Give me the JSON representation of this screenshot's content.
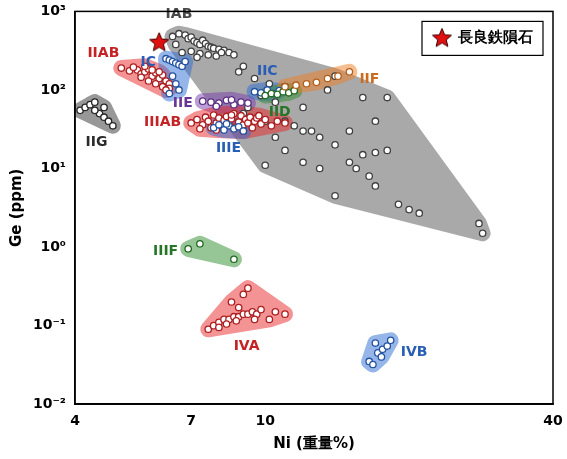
{
  "chart_data": {
    "type": "scatter",
    "x_label": "Ni (重量%)",
    "y_label": "Ge (ppm)",
    "log": true,
    "grid": false,
    "legend": "top-right",
    "xlim": [
      4,
      40
    ],
    "ylim": [
      0.01,
      1000
    ],
    "xticks": [
      4,
      7,
      10,
      40
    ],
    "yticks": [
      {
        "value": 0.01,
        "label": "10⁻²"
      },
      {
        "value": 0.1,
        "label": "10⁻¹"
      },
      {
        "value": 1,
        "label": "10⁰"
      },
      {
        "value": 10,
        "label": "10¹"
      },
      {
        "value": 100,
        "label": "10²"
      },
      {
        "value": 1000,
        "label": "10³"
      }
    ],
    "series": [
      {
        "name": "IAB",
        "color": "#555555",
        "marker": "circle",
        "x": [
          6.4,
          6.6,
          6.8,
          6.9,
          7.0,
          7.1,
          7.2,
          7.3,
          7.4,
          7.5,
          7.6,
          7.7,
          7.8,
          8.0,
          8.2,
          8.4,
          8.6,
          6.7,
          7.0,
          7.3,
          7.6,
          7.9,
          8.1,
          6.5,
          7.2,
          9.0,
          8.8,
          9.5,
          10.2,
          11.0,
          9.8,
          10.5,
          12.0,
          9.2,
          10.0,
          11.5,
          12.5,
          13.0,
          14.0,
          10.0,
          11.0,
          12.0,
          13.0,
          15.0,
          16.0,
          17.0,
          18.0,
          15.5,
          16.5,
          17.0,
          14.0,
          19.0,
          20.0,
          21.0,
          28.0,
          28.5,
          17.0,
          16.0,
          18.0,
          15.0,
          13.5,
          14.0,
          12.0,
          11.0,
          10.5,
          9.0
        ],
        "values": [
          480,
          520,
          500,
          450,
          470,
          420,
          400,
          380,
          430,
          390,
          360,
          350,
          340,
          330,
          320,
          300,
          280,
          300,
          310,
          290,
          280,
          270,
          300,
          380,
          260,
          200,
          170,
          140,
          120,
          110,
          85,
          70,
          60,
          60,
          40,
          35,
          30,
          25,
          20,
          11,
          17,
          12,
          10,
          12,
          15,
          16,
          17,
          10,
          8,
          6,
          4.5,
          3.5,
          3,
          2.7,
          2,
          1.5,
          40,
          80,
          80,
          30,
          100,
          150,
          30,
          40,
          25,
          50
        ]
      },
      {
        "name": "IIAB",
        "color": "#e8282b",
        "marker": "circle",
        "x": [
          5.0,
          5.2,
          5.4,
          5.5,
          5.6,
          5.7,
          5.8,
          5.9,
          6.0,
          6.1,
          6.2,
          6.3,
          5.3,
          5.5,
          5.7,
          5.9,
          6.1,
          6.3,
          5.6,
          5.8,
          6.0,
          6.2
        ],
        "values": [
          190,
          175,
          180,
          160,
          170,
          185,
          150,
          165,
          140,
          155,
          130,
          120,
          195,
          145,
          130,
          120,
          110,
          105,
          200,
          180,
          170,
          100
        ]
      },
      {
        "name": "IC",
        "color": "#2f6fd6",
        "marker": "circle",
        "x": [
          6.2,
          6.3,
          6.4,
          6.5,
          6.6,
          6.7,
          6.4,
          6.5,
          6.6,
          6.3,
          6.8
        ],
        "values": [
          250,
          240,
          230,
          220,
          210,
          200,
          150,
          120,
          100,
          90,
          230
        ]
      },
      {
        "name": "IIE",
        "color": "#7a3fb0",
        "marker": "circle",
        "x": [
          7.4,
          7.7,
          8.0,
          8.3,
          8.6,
          8.9,
          9.2,
          7.9,
          8.5
        ],
        "values": [
          72,
          70,
          68,
          74,
          65,
          70,
          68,
          62,
          75
        ]
      },
      {
        "name": "IIC",
        "color": "#2f6fd6",
        "marker": "circle",
        "x": [
          9.5,
          9.8,
          10.1,
          10.4,
          10.7
        ],
        "values": [
          95,
          92,
          100,
          90,
          98
        ]
      },
      {
        "name": "IID",
        "color": "#2e8b2e",
        "marker": "circle",
        "x": [
          10.0,
          10.3,
          10.6,
          10.9,
          11.2,
          11.5
        ],
        "values": [
          85,
          90,
          88,
          95,
          92,
          98
        ]
      },
      {
        "name": "IIF",
        "color": "#f07f24",
        "marker": "circle",
        "x": [
          11.0,
          11.6,
          12.2,
          12.8,
          13.5,
          14.2,
          15.0
        ],
        "values": [
          110,
          115,
          120,
          125,
          140,
          150,
          170
        ]
      },
      {
        "name": "IIIAB",
        "color": "#e8282b",
        "marker": "circle",
        "x": [
          7.0,
          7.2,
          7.4,
          7.5,
          7.6,
          7.7,
          7.8,
          7.9,
          8.0,
          8.1,
          8.2,
          8.3,
          8.4,
          8.5,
          8.6,
          8.7,
          8.8,
          8.9,
          9.0,
          9.1,
          9.2,
          9.3,
          9.4,
          9.5,
          9.6,
          9.8,
          10.0,
          10.3,
          10.6,
          11.0,
          7.3,
          7.9,
          8.5,
          9.0,
          9.7
        ],
        "values": [
          38,
          42,
          36,
          45,
          40,
          33,
          48,
          38,
          44,
          35,
          41,
          46,
          37,
          43,
          50,
          34,
          39,
          47,
          36,
          42,
          38,
          45,
          33,
          40,
          44,
          37,
          42,
          35,
          40,
          38,
          32,
          31,
          48,
          30,
          47
        ]
      },
      {
        "name": "IIIE",
        "color": "#2f6fd6",
        "marker": "circle",
        "x": [
          7.8,
          8.0,
          8.2,
          8.4,
          8.6,
          8.8,
          9.0,
          8.3
        ],
        "values": [
          33,
          36,
          31,
          35,
          32,
          34,
          30,
          37
        ]
      },
      {
        "name": "IIG",
        "color": "#333333",
        "marker": "circle",
        "x": [
          4.1,
          4.2,
          4.3,
          4.4,
          4.5,
          4.6,
          4.7,
          4.8,
          4.4,
          4.6
        ],
        "values": [
          55,
          60,
          65,
          70,
          50,
          45,
          40,
          35,
          55,
          60
        ]
      },
      {
        "name": "IIIF",
        "color": "#2e8b2e",
        "marker": "circle",
        "x": [
          6.9,
          7.3,
          8.6
        ],
        "values": [
          0.95,
          1.1,
          0.7
        ]
      },
      {
        "name": "IVA",
        "color": "#e8282b",
        "marker": "circle",
        "x": [
          7.6,
          7.8,
          8.0,
          8.2,
          8.4,
          8.6,
          8.8,
          9.0,
          9.2,
          9.4,
          9.6,
          9.8,
          8.5,
          9.0,
          9.2,
          8.8,
          11.0,
          10.2,
          8.0,
          8.3,
          8.7,
          9.5,
          10.5
        ],
        "values": [
          0.09,
          0.1,
          0.11,
          0.12,
          0.12,
          0.13,
          0.13,
          0.14,
          0.14,
          0.15,
          0.14,
          0.16,
          0.2,
          0.25,
          0.3,
          0.17,
          0.14,
          0.12,
          0.095,
          0.105,
          0.115,
          0.12,
          0.15
        ]
      },
      {
        "name": "IVB",
        "color": "#2f6fd6",
        "marker": "circle",
        "x": [
          16.5,
          16.8,
          17.2,
          17.6,
          18.0,
          17.0,
          18.3,
          17.5
        ],
        "values": [
          0.035,
          0.032,
          0.045,
          0.05,
          0.055,
          0.06,
          0.065,
          0.04
        ]
      },
      {
        "name": "長良鉄隕石",
        "color": "#e01010",
        "marker": "star",
        "x": [
          6.0
        ],
        "values": [
          400
        ]
      }
    ]
  }
}
